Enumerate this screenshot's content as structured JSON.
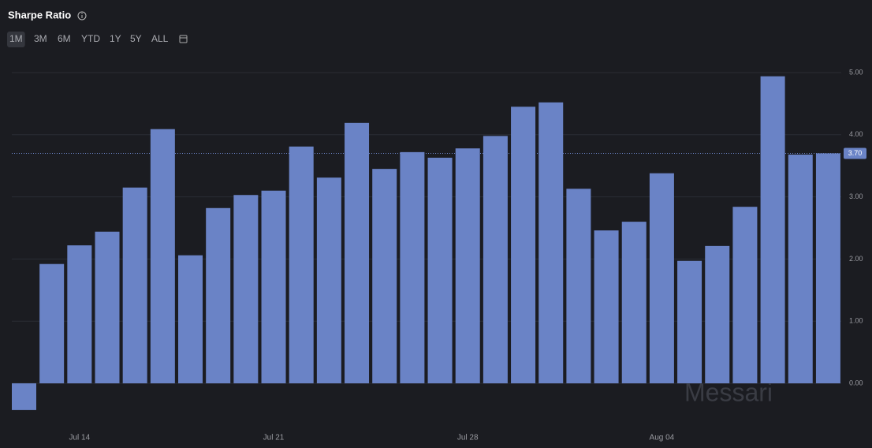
{
  "header": {
    "title": "Sharpe Ratio",
    "ranges": [
      "1M",
      "3M",
      "6M",
      "YTD",
      "1Y",
      "5Y",
      "ALL"
    ],
    "active_range": "1M"
  },
  "watermark": "Messari",
  "chart_data": {
    "type": "bar",
    "categories": [
      null,
      null,
      "Jul 14",
      null,
      null,
      null,
      null,
      null,
      null,
      "Jul 21",
      null,
      null,
      null,
      null,
      null,
      null,
      "Jul 28",
      null,
      null,
      null,
      null,
      null,
      null,
      "Aug 04",
      null,
      null,
      null,
      null,
      null,
      null
    ],
    "values": [
      -0.43,
      1.92,
      2.22,
      2.44,
      3.15,
      4.09,
      2.06,
      2.82,
      3.03,
      3.1,
      3.81,
      3.31,
      4.19,
      3.45,
      3.72,
      3.63,
      3.78,
      3.98,
      4.45,
      4.52,
      3.13,
      2.46,
      2.6,
      3.38,
      1.97,
      2.21,
      2.84,
      4.94,
      3.68,
      3.7
    ],
    "value_labels": [
      null,
      null,
      null,
      null,
      null,
      null,
      null,
      null,
      null,
      null,
      null,
      null,
      null,
      null,
      null,
      null,
      null,
      null,
      null,
      null,
      null,
      null,
      null,
      null,
      null,
      null,
      null,
      null,
      null,
      "3.70"
    ],
    "color": "#6a83c6",
    "ylim": [
      -0.43,
      5.0
    ],
    "yticks": [
      {
        "value": 0,
        "label": "0.00"
      },
      {
        "value": 1,
        "label": "1.00"
      },
      {
        "value": 2,
        "label": "2.00"
      },
      {
        "value": 3,
        "label": "3.00"
      },
      {
        "value": 4,
        "label": "4.00"
      },
      {
        "value": 5,
        "label": "5.00"
      }
    ],
    "grid": true
  }
}
